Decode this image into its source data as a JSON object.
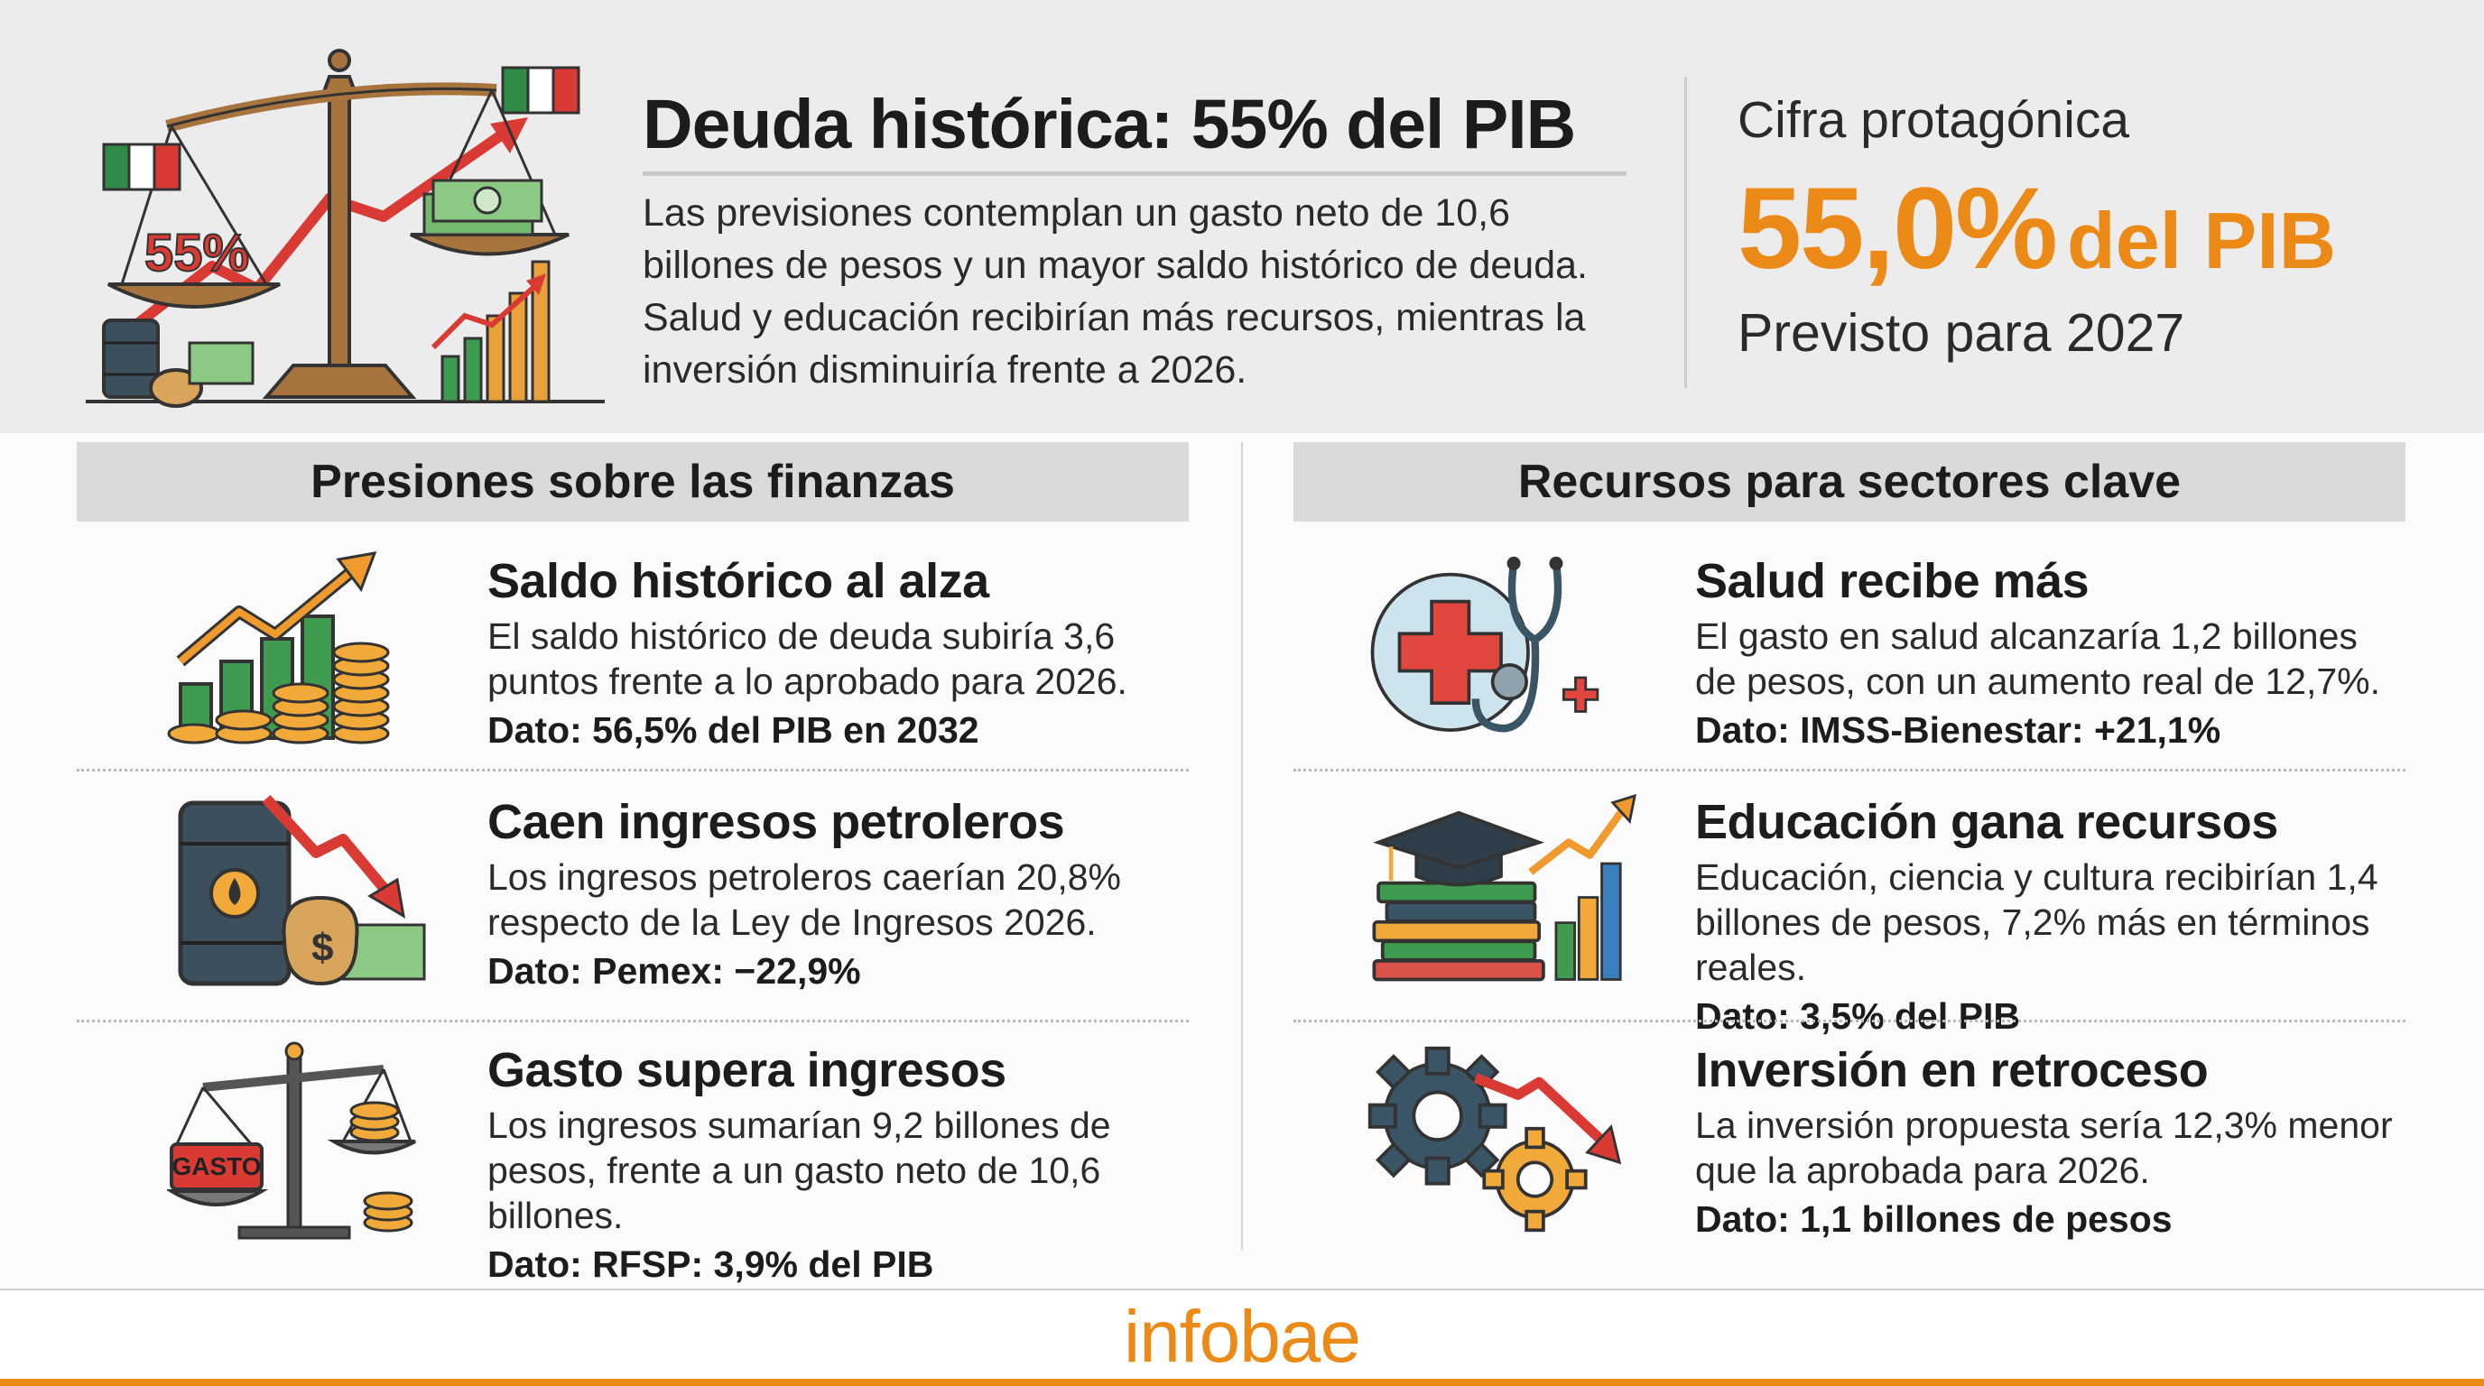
{
  "header": {
    "title": "Deuda histórica: 55% del PIB",
    "subtitle": "Las previsiones contemplan un gasto neto de 10,6 billones de pesos y un mayor saldo histórico de deuda. Salud y educación recibirían más recursos, mientras la inversión disminuiría frente a 2026.",
    "illustration_badge": "55%"
  },
  "kpi": {
    "label": "Cifra protagónica",
    "value": "55,0%",
    "unit": "del PIB",
    "note": "Previsto para 2027"
  },
  "left": {
    "heading": "Presiones sobre las finanzas",
    "items": [
      {
        "icon": "rising-bars-coins-icon",
        "title": "Saldo histórico al alza",
        "text": "El saldo histórico de deuda subiría 3,6 puntos frente a lo aprobado para 2026.",
        "dato": "Dato: 56,5% del PIB en 2032"
      },
      {
        "icon": "oil-barrel-falling-icon",
        "title": "Caen ingresos petroleros",
        "text": "Los ingresos petroleros caerían 20,8% respecto de la Ley de Ingresos 2026.",
        "dato": "Dato: Pemex: −22,9%"
      },
      {
        "icon": "balance-scale-icon",
        "title": "Gasto supera ingresos",
        "text": "Los ingresos sumarían 9,2 billones de pesos, frente a un gasto neto de 10,6 billones.",
        "dato": "Dato: RFSP: 3,9% del PIB",
        "icon_label": "GASTO"
      }
    ]
  },
  "right": {
    "heading": "Recursos para sectores clave",
    "items": [
      {
        "icon": "health-cross-stethoscope-icon",
        "title": "Salud recibe más",
        "text": "El gasto en salud alcanzaría 1,2 billones de pesos, con un aumento real de 12,7%.",
        "dato": "Dato: IMSS-Bienestar: +21,1%"
      },
      {
        "icon": "graduation-books-icon",
        "title": "Educación gana recursos",
        "text": "Educación, ciencia y cultura recibirían 1,4 billones de pesos, 7,2% más en términos reales.",
        "dato": "Dato: 3,5% del PIB"
      },
      {
        "icon": "gears-falling-icon",
        "title": "Inversión en retroceso",
        "text": "La inversión propuesta sería 12,3% menor que la aprobada para 2026.",
        "dato": "Dato: 1,1 billones de pesos"
      }
    ]
  },
  "footer": {
    "brand": "infobae"
  },
  "colors": {
    "accent": "#ec8a18",
    "header_bg": "#ececec",
    "section_head_bg": "#dadada",
    "arrow_red": "#d93a34",
    "bar_green": "#3e9b4f"
  }
}
